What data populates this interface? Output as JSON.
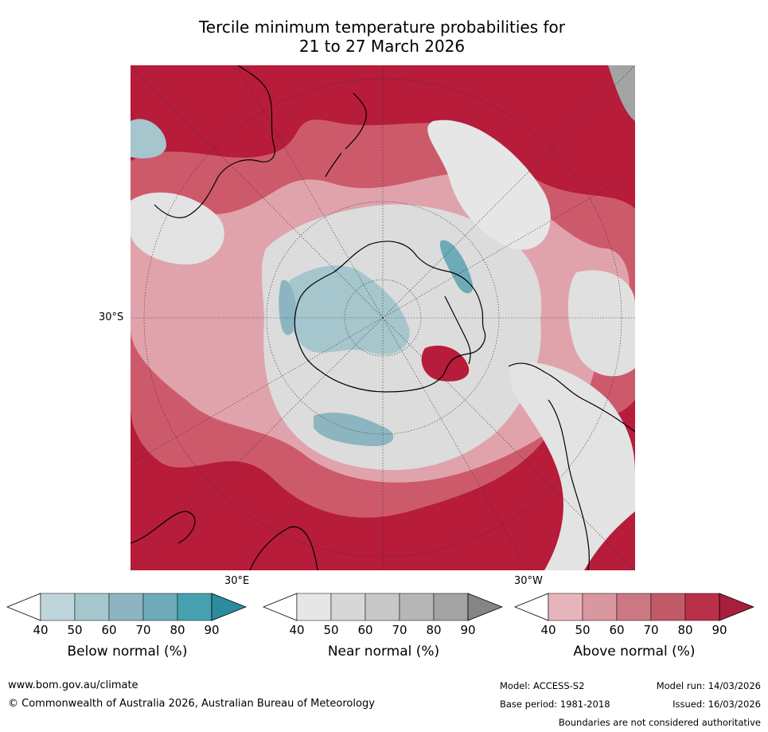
{
  "title": {
    "line1": "Tercile minimum temperature probabilities for",
    "line2": "21 to 27 March 2026"
  },
  "map_labels": {
    "lat": "30°S",
    "lon_east": "30°E",
    "lon_west": "30°W"
  },
  "legend": {
    "ticks": [
      "40",
      "50",
      "60",
      "70",
      "80",
      "90"
    ],
    "below": {
      "label": "Below normal (%)",
      "colors": [
        "#ffffff",
        "#bed5dc",
        "#a6c6cd",
        "#8db5c1",
        "#6cabb7",
        "#46a0af",
        "#2d8b9e"
      ]
    },
    "near": {
      "label": "Near normal (%)",
      "colors": [
        "#ffffff",
        "#e6e6e6",
        "#d7d7d7",
        "#c7c7c7",
        "#b6b6b6",
        "#a3a3a3",
        "#858585"
      ]
    },
    "above": {
      "label": "Above normal (%)",
      "colors": [
        "#ffffff",
        "#e6b5bb",
        "#d9979f",
        "#cc7882",
        "#c35a68",
        "#bb3049",
        "#a71f3b"
      ]
    }
  },
  "colors": {
    "above_strong": "#b71c3a",
    "above_mid": "#cd5a6b",
    "above_light": "#e0a3ac",
    "near": "#dcdcdc",
    "below": "#7fb6c4",
    "coast": "#000000"
  },
  "footer": {
    "website": "www.bom.gov.au/climate",
    "copyright": "© Commonwealth of Australia 2026, Australian Bureau of Meteorology",
    "model": "Model: ACCESS-S2",
    "model_run": "Model run: 14/03/2026",
    "base_period": "Base period: 1981-2018",
    "issued": "Issued: 16/03/2026",
    "disclaimer": "Boundaries are not considered authoritative"
  }
}
